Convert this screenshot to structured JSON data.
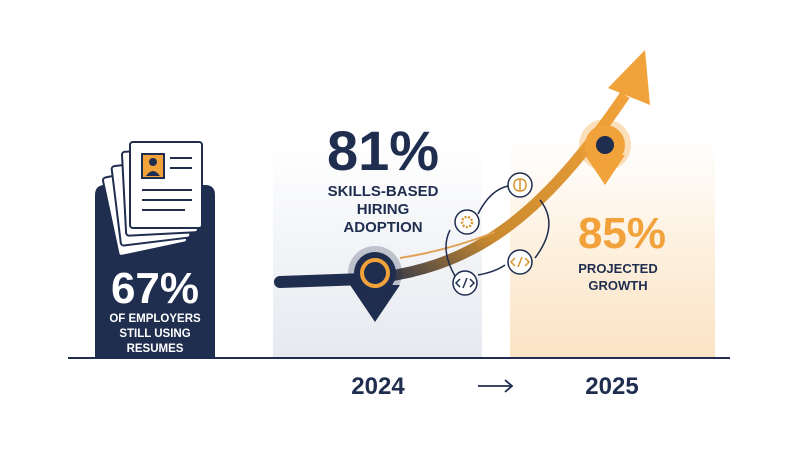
{
  "left_panel": {
    "stat": "67%",
    "label_lines": [
      "OF EMPLOYERS",
      "STILL USING",
      "RESUMES"
    ]
  },
  "center_panel": {
    "stat": "81%",
    "label_lines": [
      "SKILLS-BASED",
      "HIRING",
      "ADOPTION"
    ]
  },
  "right_panel": {
    "stat": "85%",
    "label_lines": [
      "PROJECTED",
      "GROWTH"
    ]
  },
  "timeline": {
    "start": "2024",
    "end": "2025"
  }
}
